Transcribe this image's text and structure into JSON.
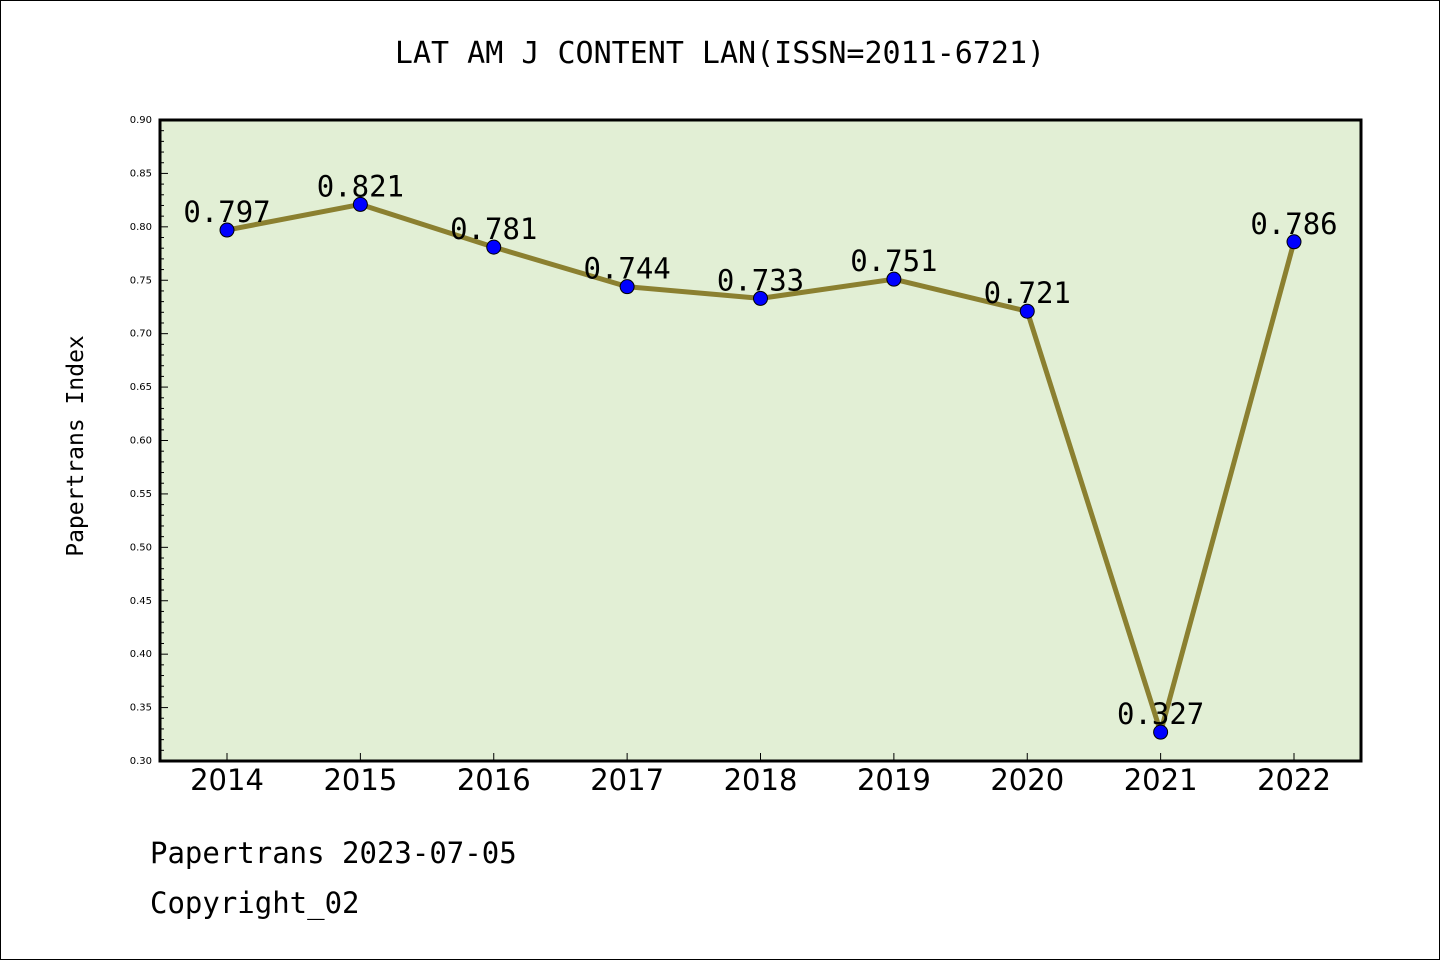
{
  "chart_data": {
    "type": "line",
    "title": "LAT AM J CONTENT LAN(ISSN=2011-6721)",
    "ylabel": "Papertrans Index",
    "xlabel": "",
    "categories": [
      "2014",
      "2015",
      "2016",
      "2017",
      "2018",
      "2019",
      "2020",
      "2021",
      "2022"
    ],
    "values": [
      0.797,
      0.821,
      0.781,
      0.744,
      0.733,
      0.751,
      0.721,
      0.327,
      0.786
    ],
    "data_labels": [
      "0.797",
      "0.821",
      "0.781",
      "0.744",
      "0.733",
      "0.751",
      "0.721",
      "0.327",
      "0.786"
    ],
    "ylim": [
      0.3,
      0.9
    ],
    "yticks": [
      "0.30",
      "0.35",
      "0.40",
      "0.45",
      "0.50",
      "0.55",
      "0.60",
      "0.65",
      "0.70",
      "0.75",
      "0.80",
      "0.85",
      "0.90"
    ],
    "grid": false,
    "legend": "none",
    "colors": {
      "plot_background": "#e2efd5",
      "line": "#8b8030",
      "marker": "#0000ff"
    }
  },
  "footer": {
    "date_text": "Papertrans 2023-07-05",
    "copyright_text": "Copyright_02"
  }
}
